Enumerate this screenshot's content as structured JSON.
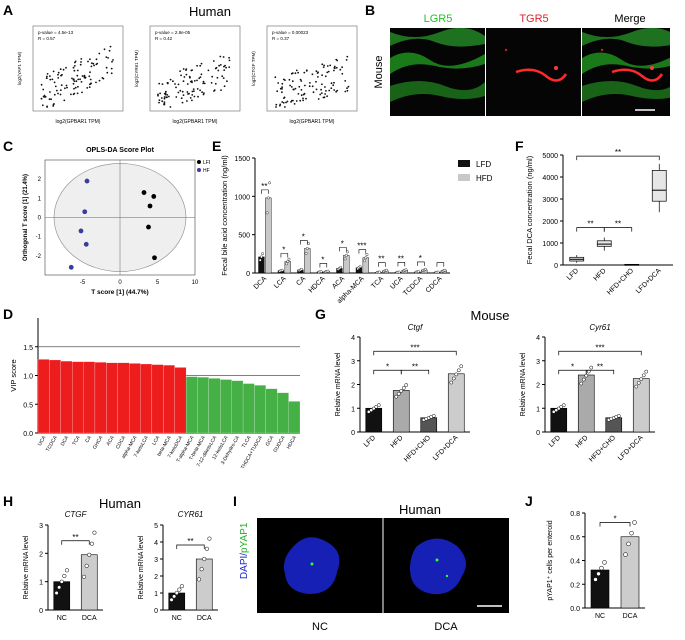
{
  "panels": {
    "A": {
      "letter": "A",
      "title": "Human",
      "plots": [
        {
          "stats1": "p-value = 4.5e-13",
          "stats2": "R = 0.57",
          "xlabel": "log2(GPBAR1 TPM)",
          "ylabel": "log2(YAP1 TPM)"
        },
        {
          "stats1": "p-value = 2.8e-05",
          "stats2": "R = 0.42",
          "xlabel": "log2(GPBAR1 TPM)",
          "ylabel": "log2(CYR61 TPM)"
        },
        {
          "stats1": "p-value = 0.00023",
          "stats2": "R = 0.37",
          "xlabel": "log2(GPBAR1 TPM)",
          "ylabel": "log2(CTGF TPM)"
        }
      ]
    },
    "B": {
      "letter": "B",
      "labels": [
        "LGR5",
        "TGR5",
        "Merge"
      ],
      "side_label": "Mouse",
      "colors": [
        "#22c322",
        "#e0242a",
        "#000000"
      ]
    },
    "C": {
      "letter": "C",
      "title": "OPLS-DA Score Plot",
      "legend": [
        "LFD",
        "HFD"
      ],
      "xlabel": "T score [1] (44.7%)",
      "ylabel": "Orthogonal T score [1] (21.4%)",
      "xticks": [
        "-5",
        "0",
        "5",
        "10"
      ],
      "yticks": [
        "-2",
        "-1",
        "0",
        "1",
        "2"
      ]
    },
    "D": {
      "letter": "D",
      "ylabel": "VIP score",
      "yticks": [
        "0.0",
        "0.5",
        "1.0",
        "1.5"
      ]
    },
    "E": {
      "letter": "E",
      "ylabel": "Fecal bile acid concentration (ng/ml)",
      "yticks": [
        "0",
        "500",
        "1000",
        "1500"
      ],
      "legend": [
        "LFD",
        "HFD"
      ],
      "sig": [
        "**",
        "*",
        "*",
        "*",
        "*",
        "***",
        "**",
        "**",
        "*"
      ]
    },
    "F": {
      "letter": "F",
      "ylabel": "Fecal DCA concentration (ng/ml)",
      "yticks": [
        "0",
        "1000",
        "2000",
        "3000",
        "4000",
        "5000"
      ],
      "sig": [
        "**",
        "**",
        "**"
      ]
    },
    "G": {
      "letter": "G",
      "title": "Mouse",
      "gene1": "Ctgf",
      "gene2": "Cyr61",
      "ylabel": "Relative mRNA level",
      "yticks": [
        "0",
        "1",
        "2",
        "3",
        "4"
      ],
      "sig": [
        "*",
        "**",
        "***"
      ]
    },
    "H": {
      "letter": "H",
      "title": "Human",
      "gene1": "CTGF",
      "gene2": "CYR61",
      "ylabel": "Relative mRNA level",
      "yticks1": [
        "0",
        "1",
        "2",
        "3"
      ],
      "yticks2": [
        "0",
        "1",
        "2",
        "3",
        "4",
        "5"
      ],
      "sig": "**"
    },
    "I": {
      "letter": "I",
      "title": "Human",
      "side_label_1": "DAPI/",
      "side_label_2": "pYAP1",
      "labels": [
        "NC",
        "DCA"
      ]
    },
    "J": {
      "letter": "J",
      "ylabel": "pYAP1⁺ cells per enteroid",
      "yticks": [
        "0.0",
        "0.2",
        "0.4",
        "0.6",
        "0.8"
      ],
      "sig": "*"
    }
  },
  "chart_data": [
    {
      "panel": "A",
      "type": "scatter",
      "xlabel": "log2(GPBAR1 TPM)",
      "ylabel": "log2(YAP1 TPM)",
      "stats": "R = 0.57"
    },
    {
      "panel": "A",
      "type": "scatter",
      "xlabel": "log2(GPBAR1 TPM)",
      "ylabel": "log2(CYR61 TPM)",
      "stats": "R = 0.42"
    },
    {
      "panel": "A",
      "type": "scatter",
      "xlabel": "log2(GPBAR1 TPM)",
      "ylabel": "log2(CTGF TPM)",
      "stats": "R = 0.37"
    },
    {
      "panel": "C",
      "type": "scatter",
      "title": "OPLS-DA Score Plot",
      "xlabel": "T score [1] (44.7%)",
      "ylabel": "Orthogonal T score [1] (21.4%)",
      "xlim": [
        -10,
        10
      ],
      "ylim": [
        -3,
        3
      ],
      "series": [
        {
          "name": "LFD",
          "color": "#000000",
          "points": [
            [
              3.2,
              1.3
            ],
            [
              4.5,
              1.1
            ],
            [
              4.0,
              0.6
            ],
            [
              3.8,
              -0.5
            ],
            [
              4.6,
              -2.1
            ]
          ]
        },
        {
          "name": "HFD",
          "color": "#3b3b9e",
          "points": [
            [
              -4.4,
              1.9
            ],
            [
              -4.7,
              0.3
            ],
            [
              -5.2,
              -0.7
            ],
            [
              -4.5,
              -1.4
            ],
            [
              -6.5,
              -2.6
            ]
          ]
        }
      ]
    },
    {
      "panel": "D",
      "type": "bar",
      "ylabel": "VIP score",
      "ylim": [
        0,
        2
      ],
      "categories": [
        "UCA",
        "TCDCA",
        "DCA",
        "TCA",
        "CA",
        "GHCA",
        "ACA",
        "CDCA",
        "alpha-MCA",
        "7-ketoLCA",
        "LCA",
        "beta-MCA",
        "7-ketoDCA",
        "T-alpha-MCA",
        "T-beta-MCA",
        "7-12-diketoLCA",
        "12-ketoLCA",
        "3-Dehydro-CA",
        "TLCA",
        "THDCA+TUDCA",
        "GCA",
        "GUDCA",
        "HDCA"
      ],
      "values": [
        1.28,
        1.27,
        1.25,
        1.24,
        1.24,
        1.23,
        1.22,
        1.22,
        1.21,
        1.2,
        1.19,
        1.18,
        1.14,
        0.98,
        0.97,
        0.95,
        0.93,
        0.91,
        0.86,
        0.83,
        0.77,
        0.7,
        0.55
      ],
      "colors_by_group": {
        "red_count": 13,
        "red": "#ee1d1d",
        "green": "#45b045"
      },
      "reference_lines": [
        1.0,
        1.5
      ]
    },
    {
      "panel": "E",
      "type": "bar",
      "ylabel": "Fecal bile acid concentration (ng/ml)",
      "ylim": [
        0,
        1500
      ],
      "categories": [
        "DCA",
        "LCA",
        "CA",
        "HDCA",
        "ACA",
        "alpha-MCA",
        "TCA",
        "UCA",
        "TCDCA",
        "CDCA"
      ],
      "series": [
        {
          "name": "LFD",
          "color": "#111111",
          "values": [
            210,
            30,
            40,
            15,
            60,
            70,
            10,
            10,
            15,
            10
          ]
        },
        {
          "name": "HFD",
          "color": "#c8c8c8",
          "values": [
            980,
            150,
            320,
            20,
            230,
            200,
            30,
            35,
            40,
            30
          ]
        }
      ]
    },
    {
      "panel": "F",
      "type": "box",
      "ylabel": "Fecal DCA concentration (ng/ml)",
      "ylim": [
        0,
        5000
      ],
      "categories": [
        "LFD",
        "HFD",
        "HFD+CHO",
        "LFD+DCA"
      ],
      "boxes": [
        {
          "min": 100,
          "q1": 180,
          "median": 260,
          "q3": 350,
          "max": 450
        },
        {
          "min": 650,
          "q1": 850,
          "median": 950,
          "q3": 1100,
          "max": 1250
        },
        {
          "min": 10,
          "q1": 15,
          "median": 20,
          "q3": 30,
          "max": 40
        },
        {
          "min": 2400,
          "q1": 2900,
          "median": 3400,
          "q3": 4300,
          "max": 4600
        }
      ]
    },
    {
      "panel": "G",
      "type": "bar",
      "title": "Ctgf",
      "ylabel": "Relative mRNA level",
      "ylim": [
        0,
        4
      ],
      "categories": [
        "LFD",
        "HFD",
        "HFD+CHO",
        "LFD+DCA"
      ],
      "values": [
        1.0,
        1.75,
        0.6,
        2.45
      ],
      "colors": [
        "#111111",
        "#aaaaaa",
        "#555555",
        "#cccccc"
      ]
    },
    {
      "panel": "G",
      "type": "bar",
      "title": "Cyr61",
      "ylabel": "Relative mRNA level",
      "ylim": [
        0,
        4
      ],
      "categories": [
        "LFD",
        "HFD",
        "HFD+CHO",
        "LFD+DCA"
      ],
      "values": [
        1.0,
        2.4,
        0.6,
        2.25
      ],
      "colors": [
        "#111111",
        "#aaaaaa",
        "#555555",
        "#cccccc"
      ]
    },
    {
      "panel": "H",
      "type": "bar",
      "title": "CTGF",
      "ylabel": "Relative mRNA level",
      "ylim": [
        0,
        3
      ],
      "categories": [
        "NC",
        "DCA"
      ],
      "values": [
        1.0,
        1.95
      ],
      "colors": [
        "#111111",
        "#cccccc"
      ]
    },
    {
      "panel": "H",
      "type": "bar",
      "title": "CYR61",
      "ylabel": "Relative mRNA level",
      "ylim": [
        0,
        5
      ],
      "categories": [
        "NC",
        "DCA"
      ],
      "values": [
        1.0,
        3.0
      ],
      "colors": [
        "#111111",
        "#cccccc"
      ]
    },
    {
      "panel": "J",
      "type": "bar",
      "ylabel": "pYAP1⁺ cells per enteroid",
      "ylim": [
        0,
        0.8
      ],
      "categories": [
        "NC",
        "DCA"
      ],
      "values": [
        0.32,
        0.6
      ],
      "colors": [
        "#111111",
        "#cccccc"
      ]
    }
  ]
}
